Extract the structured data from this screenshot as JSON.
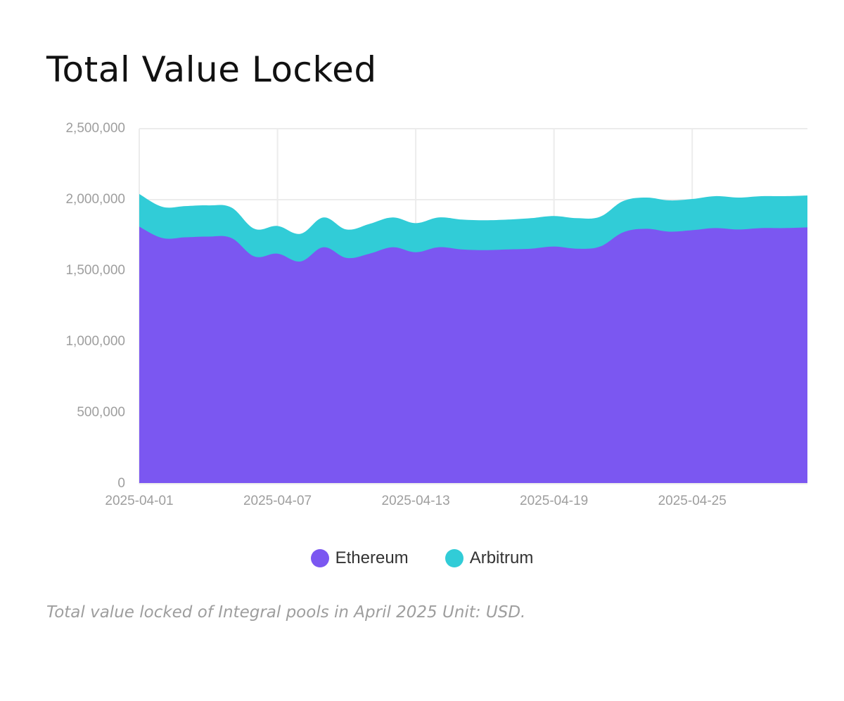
{
  "header": {
    "title": "Total Value Locked"
  },
  "caption": "Total value locked of Integral pools in April 2025 Unit: USD.",
  "colors": {
    "ethereum": "#7b57f1",
    "arbitrum": "#31ccd7",
    "grid": "#ececec",
    "tick_text": "#9e9e9e"
  },
  "legend": [
    {
      "label": "Ethereum",
      "color": "#7b57f1"
    },
    {
      "label": "Arbitrum",
      "color": "#31ccd7"
    }
  ],
  "chart_data": {
    "type": "area",
    "stacked": true,
    "title": "Total Value Locked",
    "xlabel": "",
    "ylabel": "",
    "ylim": [
      0,
      2500000
    ],
    "y_ticks": [
      0,
      500000,
      1000000,
      1500000,
      2000000,
      2500000
    ],
    "y_tick_labels": [
      "0",
      "500,000",
      "1,000,000",
      "1,500,000",
      "2,000,000",
      "2,500,000"
    ],
    "x_tick_labels": [
      "2025-04-01",
      "2025-04-07",
      "2025-04-13",
      "2025-04-19",
      "2025-04-25"
    ],
    "x_tick_indices": [
      0,
      6,
      12,
      18,
      24
    ],
    "grid": true,
    "legend_position": "bottom",
    "categories": [
      "2025-04-01",
      "2025-04-02",
      "2025-04-03",
      "2025-04-04",
      "2025-04-05",
      "2025-04-06",
      "2025-04-07",
      "2025-04-08",
      "2025-04-09",
      "2025-04-10",
      "2025-04-11",
      "2025-04-12",
      "2025-04-13",
      "2025-04-14",
      "2025-04-15",
      "2025-04-16",
      "2025-04-17",
      "2025-04-18",
      "2025-04-19",
      "2025-04-20",
      "2025-04-21",
      "2025-04-22",
      "2025-04-23",
      "2025-04-24",
      "2025-04-25",
      "2025-04-26",
      "2025-04-27",
      "2025-04-28",
      "2025-04-29",
      "2025-04-30"
    ],
    "series": [
      {
        "name": "Ethereum",
        "values": [
          1810000,
          1730000,
          1735000,
          1740000,
          1730000,
          1600000,
          1620000,
          1565000,
          1665000,
          1590000,
          1620000,
          1665000,
          1630000,
          1665000,
          1650000,
          1645000,
          1650000,
          1655000,
          1670000,
          1655000,
          1670000,
          1770000,
          1795000,
          1775000,
          1785000,
          1800000,
          1790000,
          1800000,
          1800000,
          1805000
        ]
      },
      {
        "name": "Arbitrum",
        "values": [
          230000,
          220000,
          220000,
          220000,
          215000,
          195000,
          195000,
          195000,
          210000,
          200000,
          210000,
          210000,
          205000,
          210000,
          210000,
          210000,
          210000,
          215000,
          215000,
          215000,
          210000,
          220000,
          220000,
          220000,
          220000,
          225000,
          225000,
          225000,
          225000,
          225000
        ]
      }
    ]
  }
}
